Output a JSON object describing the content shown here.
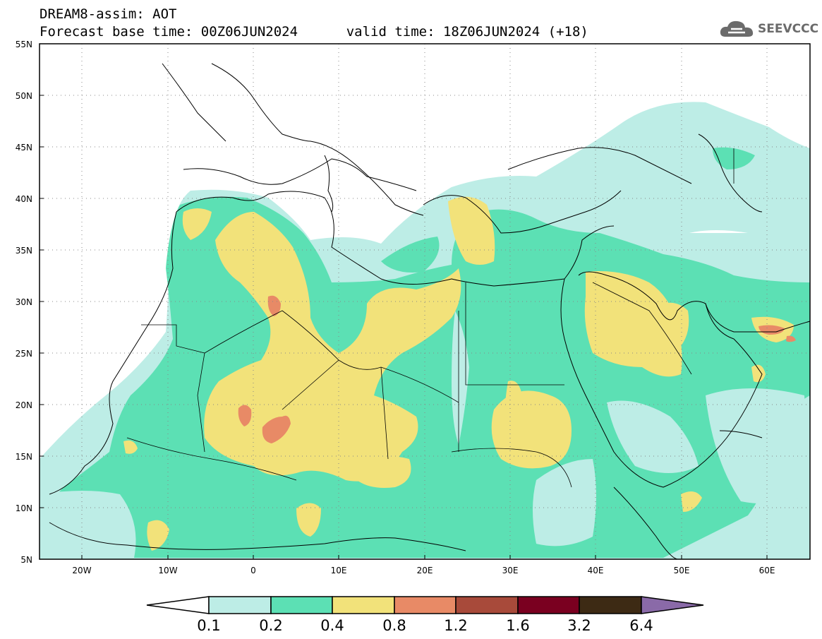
{
  "header": {
    "line1": "DREAM8-assim: AOT",
    "base_time_label": "Forecast base time: 00Z06JUN2024",
    "valid_time_label": "valid time: 18Z06JUN2024 (+18)",
    "logo_text": "SEEVCCC"
  },
  "map": {
    "lon_range": [
      -25,
      65
    ],
    "lat_range": [
      5,
      55
    ],
    "lat_ticks": [
      "55N",
      "50N",
      "45N",
      "40N",
      "35N",
      "30N",
      "25N",
      "20N",
      "15N",
      "10N",
      "5N"
    ],
    "lon_ticks": [
      "20W",
      "10W",
      "0",
      "10E",
      "20E",
      "30E",
      "40E",
      "50E",
      "60E"
    ],
    "grid": "dotted",
    "land_outline_color": "#000000"
  },
  "colorbar": {
    "labels": [
      "0.1",
      "0.2",
      "0.4",
      "0.8",
      "1.2",
      "1.6",
      "3.2",
      "6.4"
    ],
    "colors": [
      "#ffffff",
      "#bdede6",
      "#5ce0b4",
      "#f2e27a",
      "#e88a66",
      "#a84a3a",
      "#7a0020",
      "#3d2a14",
      "#8a6aa8"
    ]
  }
}
